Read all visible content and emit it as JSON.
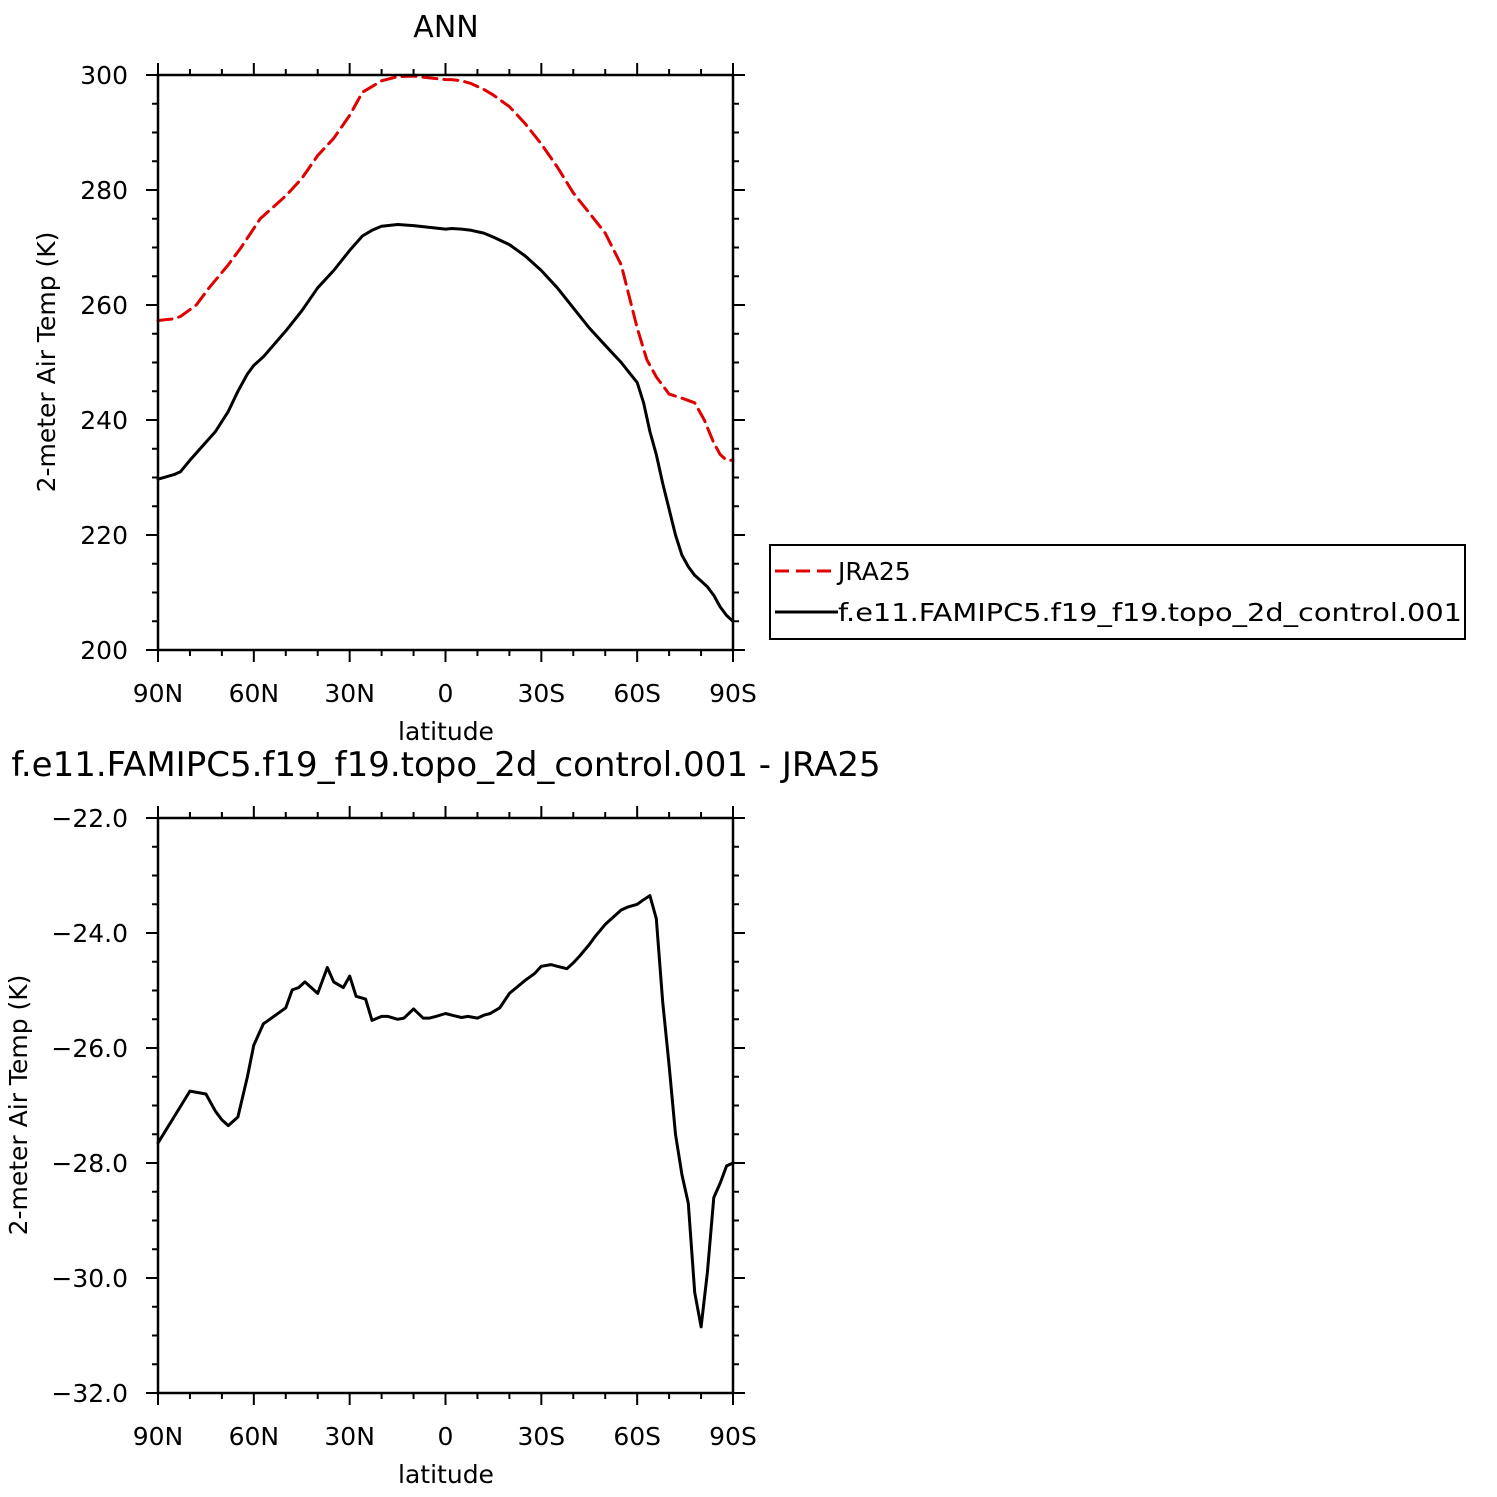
{
  "chart_data": [
    {
      "type": "line",
      "title": "ANN",
      "xlabel": "latitude",
      "ylabel": "2-meter Air Temp (K)",
      "xlim": [
        90,
        -90
      ],
      "ylim": [
        200,
        300
      ],
      "x_ticks": [
        {
          "value": 90,
          "label": "90N"
        },
        {
          "value": 60,
          "label": "60N"
        },
        {
          "value": 30,
          "label": "30N"
        },
        {
          "value": 0,
          "label": "0"
        },
        {
          "value": -30,
          "label": "30S"
        },
        {
          "value": -60,
          "label": "60S"
        },
        {
          "value": -90,
          "label": "90S"
        }
      ],
      "y_ticks": [
        {
          "value": 300,
          "label": "300"
        },
        {
          "value": 280,
          "label": "280"
        },
        {
          "value": 260,
          "label": "260"
        },
        {
          "value": 240,
          "label": "240"
        },
        {
          "value": 220,
          "label": "220"
        },
        {
          "value": 200,
          "label": "200"
        }
      ],
      "legend": "right",
      "series": [
        {
          "name": "JRA25",
          "color": "#e00000",
          "dash": "dashed",
          "x": [
            90,
            85,
            83,
            78,
            74,
            68,
            64,
            58,
            50,
            45,
            40,
            35,
            30,
            26,
            20,
            15,
            10,
            5,
            0,
            -2,
            -5,
            -8,
            -12,
            -15,
            -20,
            -25,
            -30,
            -35,
            -40,
            -45,
            -50,
            -55,
            -60,
            -63,
            -66,
            -70,
            -74,
            -78,
            -81,
            -84,
            -86,
            -88,
            -90
          ],
          "y": [
            257.3,
            257.6,
            258,
            260,
            263,
            267,
            270,
            275,
            279,
            282,
            286,
            289,
            293,
            297,
            299,
            299.7,
            299.8,
            299.5,
            299.2,
            299.2,
            299,
            298.5,
            297.5,
            296.5,
            294.5,
            291.5,
            288,
            284,
            279.5,
            276,
            272.5,
            267,
            256,
            250.5,
            247.5,
            244.5,
            243.8,
            243,
            240,
            236,
            234,
            233,
            233
          ]
        },
        {
          "name": "f.e11.FAMIPC5.f19_f19.topo_2d_control.001",
          "color": "#000000",
          "dash": "solid",
          "x": [
            90,
            85,
            83,
            80,
            76,
            72,
            68,
            65,
            62,
            60,
            57,
            50,
            45,
            40,
            35,
            30,
            26,
            23,
            20,
            15,
            10,
            5,
            0,
            -2,
            -5,
            -8,
            -12,
            -15,
            -20,
            -25,
            -30,
            -35,
            -40,
            -45,
            -50,
            -55,
            -60,
            -62,
            -64,
            -66,
            -68,
            -70,
            -72,
            -74,
            -76,
            -78,
            -80,
            -82,
            -84,
            -86,
            -88,
            -90
          ],
          "y": [
            229.7,
            230.5,
            231,
            233,
            235.5,
            238,
            241.5,
            245,
            248,
            249.5,
            251,
            255.5,
            259,
            263,
            266,
            269.5,
            272,
            273,
            273.7,
            274,
            273.8,
            273.5,
            273.2,
            273.3,
            273.2,
            273,
            272.5,
            271.8,
            270.5,
            268.5,
            266,
            263,
            259.5,
            256,
            253,
            250,
            246.5,
            243,
            238,
            234,
            229,
            224.5,
            220,
            216.5,
            214.5,
            213,
            212,
            211,
            209.5,
            207.5,
            206,
            205
          ]
        }
      ]
    },
    {
      "type": "line",
      "title": "f.e11.FAMIPC5.f19_f19.topo_2d_control.001 - JRA25",
      "xlabel": "latitude",
      "ylabel": "2-meter Air Temp (K)",
      "xlim": [
        90,
        -90
      ],
      "ylim": [
        -32,
        -22
      ],
      "x_ticks": [
        {
          "value": 90,
          "label": "90N"
        },
        {
          "value": 60,
          "label": "60N"
        },
        {
          "value": 30,
          "label": "30N"
        },
        {
          "value": 0,
          "label": "0"
        },
        {
          "value": -30,
          "label": "30S"
        },
        {
          "value": -60,
          "label": "60S"
        },
        {
          "value": -90,
          "label": "90S"
        }
      ],
      "y_ticks": [
        {
          "value": -22,
          "label": "-22.0"
        },
        {
          "value": -24,
          "label": "-24.0"
        },
        {
          "value": -26,
          "label": "-26.0"
        },
        {
          "value": -28,
          "label": "-28.0"
        },
        {
          "value": -30,
          "label": "-30.0"
        },
        {
          "value": -32,
          "label": "-32.0"
        }
      ],
      "series": [
        {
          "color": "#000000",
          "dash": "solid",
          "x": [
            90,
            85,
            80,
            75,
            72,
            70,
            68,
            65,
            62,
            60,
            57,
            55,
            50,
            48,
            46,
            44,
            42,
            40,
            37,
            35,
            32,
            30,
            28,
            25,
            23,
            20,
            18,
            15,
            13,
            10,
            7,
            5,
            3,
            0,
            -2,
            -5,
            -7,
            -10,
            -12,
            -14,
            -17,
            -20,
            -25,
            -28,
            -30,
            -33,
            -35,
            -38,
            -40,
            -42,
            -45,
            -47,
            -50,
            -53,
            -55,
            -57,
            -60,
            -62,
            -64,
            -66,
            -68,
            -70,
            -72,
            -74,
            -76,
            -78,
            -80,
            -82,
            -84,
            -86,
            -88,
            -90
          ],
          "y": [
            -27.65,
            -27.2,
            -26.75,
            -26.8,
            -27.1,
            -27.25,
            -27.35,
            -27.2,
            -26.5,
            -25.95,
            -25.58,
            -25.5,
            -25.3,
            -24.99,
            -24.95,
            -24.85,
            -24.95,
            -25.05,
            -24.6,
            -24.85,
            -24.95,
            -24.75,
            -25.1,
            -25.15,
            -25.52,
            -25.45,
            -25.45,
            -25.5,
            -25.48,
            -25.32,
            -25.48,
            -25.48,
            -25.45,
            -25.4,
            -25.43,
            -25.47,
            -25.45,
            -25.48,
            -25.43,
            -25.4,
            -25.3,
            -25.05,
            -24.82,
            -24.7,
            -24.58,
            -24.55,
            -24.58,
            -24.62,
            -24.52,
            -24.4,
            -24.2,
            -24.05,
            -23.85,
            -23.7,
            -23.6,
            -23.55,
            -23.5,
            -23.42,
            -23.35,
            -23.75,
            -25.2,
            -26.3,
            -27.5,
            -28.2,
            -28.7,
            -30.25,
            -30.85,
            -29.9,
            -28.6,
            -28.35,
            -28.05,
            -28.0
          ]
        }
      ]
    }
  ]
}
